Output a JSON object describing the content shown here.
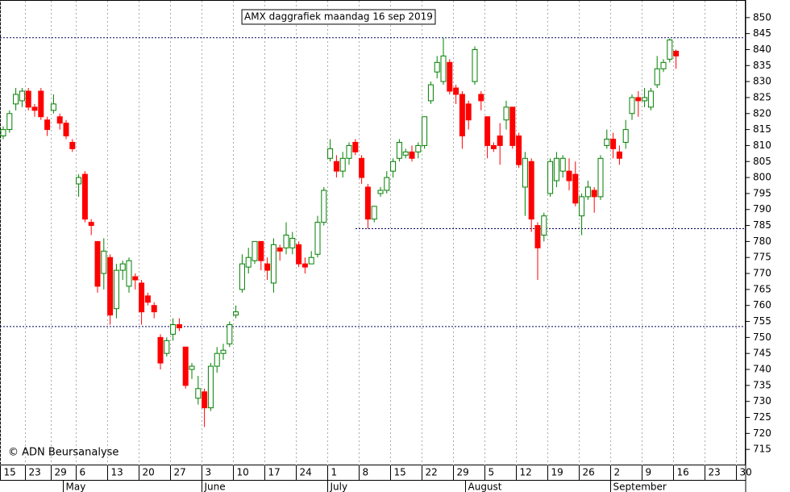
{
  "chart_data": {
    "type": "candlestick",
    "title": "AMX daggrafiek maandag 16 sep 2019",
    "credit": "© ADN Beursanalyse",
    "categories": [
      "15",
      null,
      null,
      null,
      "23",
      null,
      null,
      null,
      "29",
      null,
      null,
      null,
      "6",
      null,
      null,
      null,
      null,
      "13",
      null,
      null,
      null,
      null,
      "20",
      null,
      null,
      null,
      null,
      "27",
      null,
      null,
      null,
      null,
      "3",
      null,
      null,
      null,
      null,
      "10",
      null,
      null,
      null,
      null,
      "17",
      null,
      null,
      null,
      null,
      "24",
      null,
      null,
      null,
      null,
      "1",
      null,
      null,
      null,
      null,
      "8",
      null,
      null,
      null,
      null,
      "15",
      null,
      null,
      null,
      null,
      "22",
      null,
      null,
      null,
      null,
      "29",
      null,
      null,
      null,
      null,
      "5",
      null,
      null,
      null,
      null,
      "12",
      null,
      null,
      null,
      null,
      "19",
      null,
      null,
      null,
      null,
      "26",
      null,
      null,
      null,
      null,
      "2",
      null,
      null,
      null,
      null,
      "9",
      null,
      null,
      null,
      null,
      "16",
      null,
      null,
      null,
      null,
      "23",
      null,
      null,
      null,
      null,
      "30"
    ],
    "months": [
      "May",
      "June",
      "July",
      "August",
      "September"
    ],
    "open": [
      813,
      815,
      823,
      824,
      827,
      822,
      827,
      818,
      821,
      819,
      817,
      811,
      798,
      801,
      786,
      780,
      770,
      775,
      759,
      771,
      766,
      769,
      767,
      763,
      760,
      750,
      745,
      751,
      754,
      747,
      740,
      731,
      733,
      728,
      741,
      745,
      748,
      757,
      765,
      772,
      774,
      780,
      773,
      767,
      778,
      778,
      778,
      779,
      773,
      773,
      776,
      786,
      806,
      805,
      802,
      806,
      811,
      806,
      797,
      787,
      795,
      796,
      802,
      806,
      807,
      808,
      808,
      810,
      824,
      833,
      830,
      836,
      828,
      826,
      823,
      830,
      826,
      819,
      810,
      813,
      818,
      822,
      813,
      797,
      805,
      785,
      782,
      795,
      799,
      802,
      802,
      801,
      788,
      794,
      796,
      794,
      810,
      812,
      808,
      811,
      820,
      825,
      824,
      822,
      829,
      834,
      837,
      839.5,
      null,
      null,
      null,
      null,
      null,
      null,
      null,
      null,
      null,
      null
    ],
    "high": [
      816,
      821,
      828,
      828,
      828,
      823,
      828,
      819,
      826,
      820,
      818,
      812,
      801,
      802,
      787,
      780,
      781,
      776,
      773,
      774,
      775,
      770,
      768,
      764,
      761,
      751,
      750,
      756,
      756,
      747,
      742,
      738,
      734,
      742,
      747,
      748,
      755,
      760,
      776,
      778,
      780,
      780,
      775,
      781,
      779,
      786,
      783,
      780,
      775,
      777,
      788,
      797,
      812,
      807,
      808,
      811,
      812,
      807,
      798,
      791,
      797,
      802,
      806,
      812,
      809,
      810,
      811,
      819,
      830,
      838,
      843.7,
      837,
      829,
      827,
      824,
      841,
      827,
      819,
      811,
      817,
      824,
      822,
      814,
      808,
      806,
      786,
      789,
      806,
      808,
      807,
      806,
      805,
      795,
      799,
      797,
      807,
      815,
      814,
      810,
      818,
      826,
      827,
      828,
      828,
      838,
      837,
      843.5,
      840,
      null,
      null,
      null,
      null,
      null,
      null,
      null,
      null,
      null,
      null
    ],
    "low": [
      812,
      814,
      821,
      822,
      821,
      819,
      818,
      813,
      820,
      815,
      812,
      808,
      794,
      786,
      782,
      764,
      765,
      754,
      756,
      768,
      764,
      765,
      754,
      760,
      756,
      740,
      744,
      749,
      752,
      734,
      737,
      729,
      722,
      727,
      739,
      743,
      747,
      756,
      764,
      770,
      773,
      771,
      768,
      764,
      774,
      776,
      776,
      772,
      770,
      773,
      775,
      785,
      805,
      800,
      800,
      804,
      807,
      798,
      784,
      786,
      794,
      795,
      800,
      805,
      806,
      805,
      806,
      809,
      823,
      831,
      829,
      826,
      823,
      809,
      815,
      829,
      821,
      806,
      808,
      804,
      815,
      809,
      803,
      788,
      783,
      768,
      780,
      794,
      797,
      800,
      796,
      791,
      782,
      793,
      789,
      793,
      809,
      806,
      804,
      809,
      818,
      819,
      822,
      821,
      828,
      833,
      836,
      834,
      null,
      null,
      null,
      null,
      null,
      null,
      null,
      null,
      null,
      null
    ],
    "close": [
      815,
      820,
      826,
      827,
      822,
      821,
      819,
      815,
      823,
      817,
      813,
      809,
      800,
      787,
      785,
      766,
      777,
      757,
      771,
      773,
      774,
      768,
      758,
      761,
      758,
      742,
      749,
      754,
      753,
      735,
      741,
      734,
      728,
      741,
      745,
      746,
      754,
      758,
      773,
      775,
      780,
      774,
      771,
      779,
      777,
      782,
      781,
      773,
      772,
      775,
      786,
      796,
      809,
      802,
      806,
      810,
      808,
      800,
      787,
      791,
      796,
      800,
      805,
      811,
      808,
      806,
      810,
      819,
      829,
      836,
      838,
      827,
      826,
      813,
      818,
      840,
      824,
      810,
      809,
      810,
      822,
      810,
      804,
      806,
      787,
      778,
      788,
      805,
      806,
      806,
      799,
      792,
      794,
      797,
      794,
      806,
      812,
      809,
      806,
      815,
      825,
      824,
      825,
      827,
      834,
      836,
      843,
      838,
      null,
      null,
      null,
      null,
      null,
      null,
      null,
      null,
      null,
      null
    ],
    "up_color": "#008000",
    "down_color": "#ff0000",
    "hlines": [
      843.7,
      784,
      753.4
    ],
    "ylim": [
      710,
      855.5
    ],
    "yticks": [
      715,
      720,
      725,
      730,
      735,
      740,
      745,
      750,
      755,
      760,
      765,
      770,
      775,
      780,
      785,
      790,
      795,
      800,
      805,
      810,
      815,
      820,
      825,
      830,
      835,
      840,
      845,
      850
    ],
    "grid": true
  }
}
